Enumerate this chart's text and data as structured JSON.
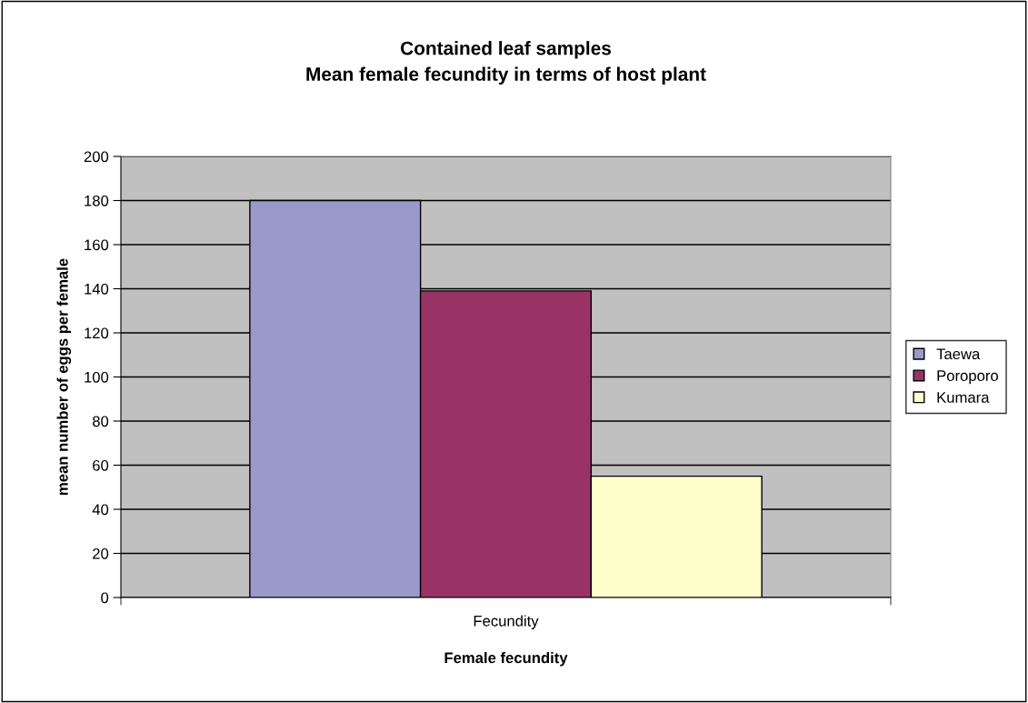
{
  "chart_data": {
    "type": "bar",
    "title": "Contained leaf samples\nMean female fecundity in terms of host plant",
    "xlabel": "Female fecundity",
    "ylabel": "mean number of eggs per female",
    "categories": [
      "Fecundity"
    ],
    "series": [
      {
        "name": "Taewa",
        "color": "#9999cc",
        "values": [
          180
        ]
      },
      {
        "name": "Poroporo",
        "color": "#993366",
        "values": [
          139
        ]
      },
      {
        "name": "Kumara",
        "color": "#ffffcc",
        "values": [
          55
        ]
      }
    ],
    "ylim": [
      0,
      200
    ],
    "yticks": [
      0,
      20,
      40,
      60,
      80,
      100,
      120,
      140,
      160,
      180,
      200
    ],
    "grid": "y",
    "legend": "right"
  }
}
